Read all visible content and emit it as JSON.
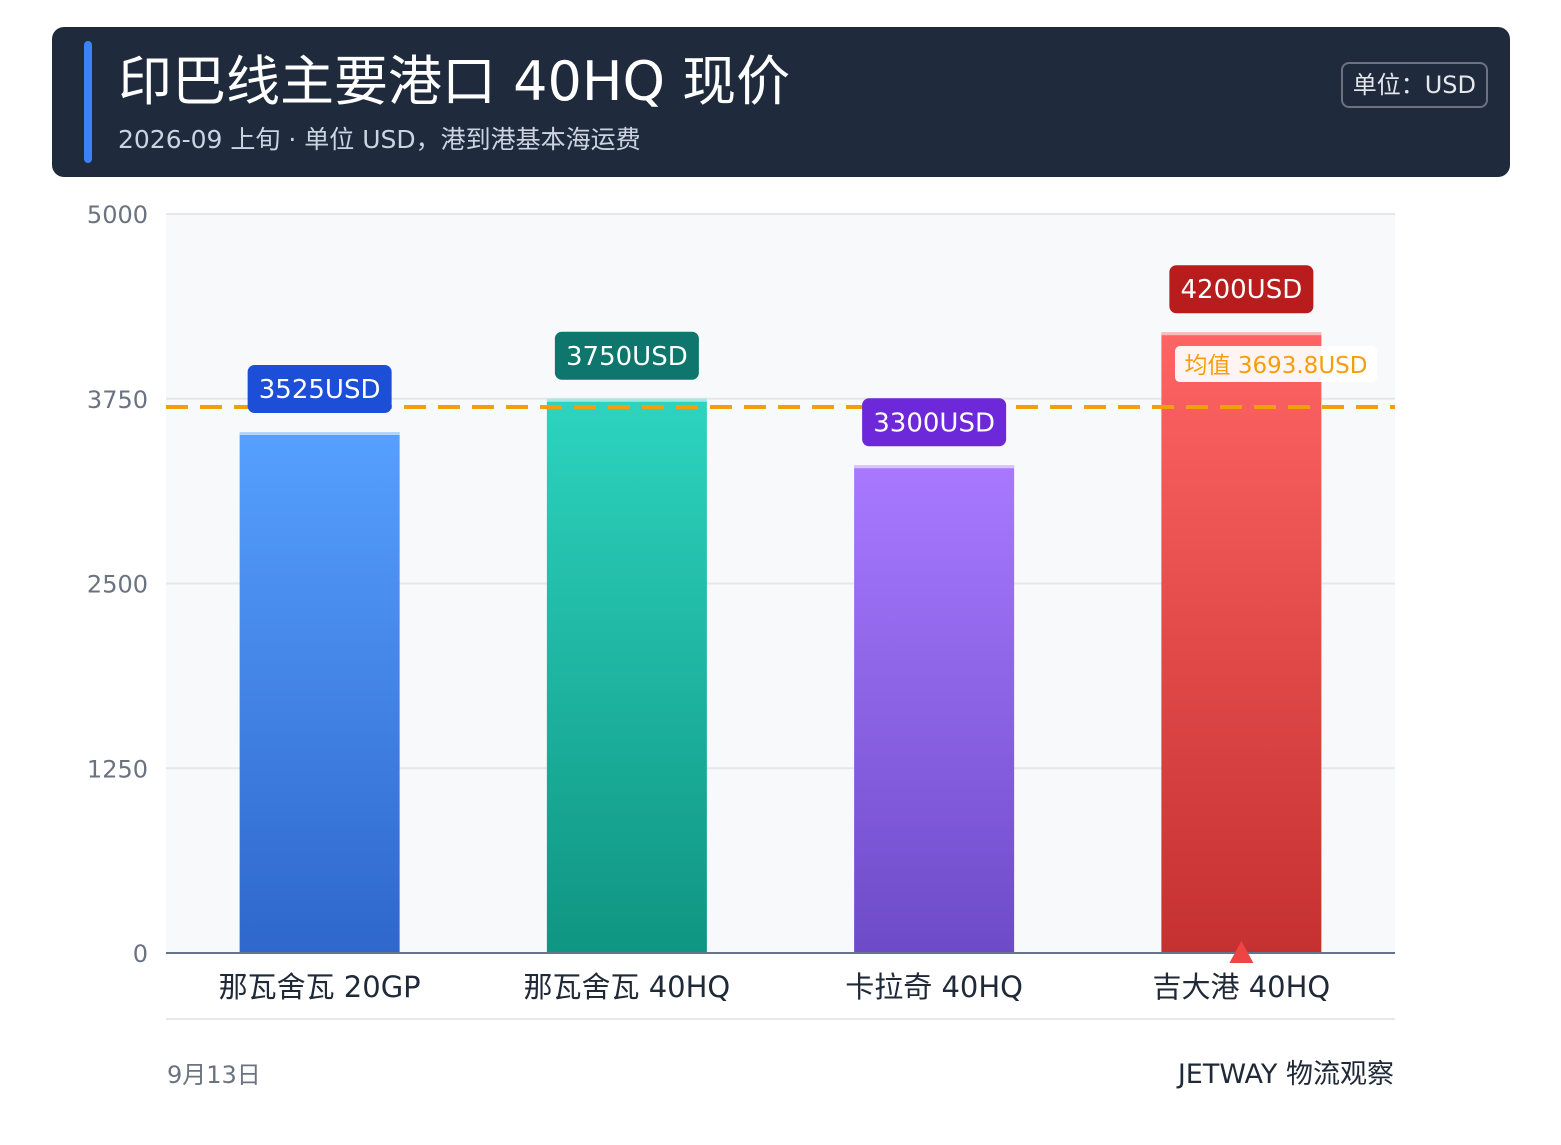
{
  "header": {
    "title": "印巴线主要港口 40HQ 现价",
    "subtitle": "2026-09 上旬 · 单位 USD，港到港基本海运费",
    "unit_badge": "单位：USD"
  },
  "colors": {
    "header_bg": "#1f2a3d",
    "accent": "#3b82f6",
    "avg_line": "#f59e0b",
    "bars": [
      {
        "top": "#56a0ff",
        "bottom": "#2f67cc",
        "label_bg": "#1d4ed8"
      },
      {
        "top": "#2dd4bf",
        "bottom": "#0f9582",
        "label_bg": "#0f766e"
      },
      {
        "top": "#a879ff",
        "bottom": "#6d4bc8",
        "label_bg": "#6d28d9"
      },
      {
        "top": "#ff6464",
        "bottom": "#c53030",
        "label_bg": "#b91c1c"
      }
    ]
  },
  "chart_data": {
    "type": "bar",
    "categories": [
      "那瓦舍瓦 20GP",
      "那瓦舍瓦 40HQ",
      "卡拉奇 40HQ",
      "吉大港 40HQ"
    ],
    "values": [
      3525,
      3750,
      3300,
      4200
    ],
    "value_labels": [
      "3525USD",
      "3750USD",
      "3300USD",
      "4200USD"
    ],
    "ylim": [
      0,
      5000
    ],
    "yticks": [
      "0",
      "1250",
      "2500",
      "3750",
      "5000"
    ],
    "ytick_values": [
      0,
      1250,
      2500,
      3750,
      5000
    ],
    "average": 3693.8,
    "average_label": "均值 3693.8USD",
    "highlight_index": 3,
    "grid": true
  },
  "footer": {
    "date": "9月13日",
    "brand": "JETWAY 物流观察"
  }
}
